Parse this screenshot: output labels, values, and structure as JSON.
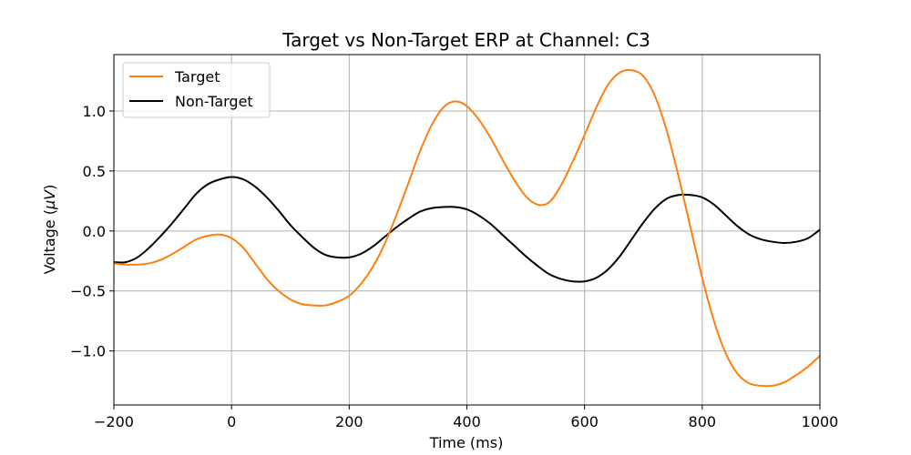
{
  "chart_data": {
    "type": "line",
    "title": "Target vs Non-Target ERP at Channel: C3",
    "xlabel": "Time (ms)",
    "ylabel_prefix": "Voltage (",
    "ylabel_unit": "μV",
    "ylabel_suffix": ")",
    "xlim": [
      -200,
      1000
    ],
    "ylim": [
      -1.45,
      1.47
    ],
    "grid": true,
    "legend_position": "top-left",
    "x_ticks": [
      -200,
      0,
      200,
      400,
      600,
      800,
      1000
    ],
    "x_tick_labels": [
      "−200",
      "0",
      "200",
      "400",
      "600",
      "800",
      "1000"
    ],
    "y_ticks": [
      -1.0,
      -0.5,
      0.0,
      0.5,
      1.0
    ],
    "y_tick_labels": [
      "−1.0",
      "−0.5",
      "0.0",
      "0.5",
      "1.0"
    ],
    "series": [
      {
        "name": "Target",
        "color": "#ff7f0e",
        "x": [
          -200,
          -180,
          -160,
          -140,
          -120,
          -100,
          -80,
          -60,
          -40,
          -20,
          0,
          20,
          40,
          60,
          80,
          100,
          120,
          140,
          160,
          180,
          200,
          220,
          240,
          260,
          280,
          300,
          320,
          340,
          360,
          380,
          400,
          420,
          440,
          460,
          480,
          500,
          520,
          540,
          560,
          580,
          600,
          620,
          640,
          660,
          680,
          700,
          720,
          740,
          760,
          780,
          800,
          820,
          840,
          860,
          880,
          900,
          920,
          940,
          960,
          980,
          1000
        ],
        "y": [
          -0.27,
          -0.28,
          -0.28,
          -0.27,
          -0.24,
          -0.19,
          -0.13,
          -0.07,
          -0.04,
          -0.03,
          -0.06,
          -0.14,
          -0.27,
          -0.4,
          -0.5,
          -0.57,
          -0.61,
          -0.62,
          -0.62,
          -0.59,
          -0.54,
          -0.44,
          -0.3,
          -0.11,
          0.13,
          0.39,
          0.66,
          0.88,
          1.03,
          1.08,
          1.04,
          0.93,
          0.78,
          0.6,
          0.43,
          0.29,
          0.22,
          0.24,
          0.38,
          0.58,
          0.8,
          1.03,
          1.22,
          1.32,
          1.34,
          1.29,
          1.12,
          0.83,
          0.45,
          0.03,
          -0.39,
          -0.75,
          -1.02,
          -1.19,
          -1.27,
          -1.29,
          -1.29,
          -1.26,
          -1.2,
          -1.13,
          -1.04
        ]
      },
      {
        "name": "Non-Target",
        "color": "#000000",
        "x": [
          -200,
          -180,
          -160,
          -140,
          -120,
          -100,
          -80,
          -60,
          -40,
          -20,
          0,
          20,
          40,
          60,
          80,
          100,
          120,
          140,
          160,
          180,
          200,
          220,
          240,
          260,
          280,
          300,
          320,
          340,
          360,
          380,
          400,
          420,
          440,
          460,
          480,
          500,
          520,
          540,
          560,
          580,
          600,
          620,
          640,
          660,
          680,
          700,
          720,
          740,
          760,
          780,
          800,
          820,
          840,
          860,
          880,
          900,
          920,
          940,
          960,
          980,
          1000
        ],
        "y": [
          -0.26,
          -0.26,
          -0.22,
          -0.14,
          -0.04,
          0.07,
          0.19,
          0.31,
          0.39,
          0.43,
          0.45,
          0.43,
          0.37,
          0.28,
          0.17,
          0.05,
          -0.05,
          -0.14,
          -0.2,
          -0.22,
          -0.22,
          -0.19,
          -0.13,
          -0.05,
          0.03,
          0.1,
          0.16,
          0.19,
          0.2,
          0.2,
          0.18,
          0.13,
          0.06,
          -0.03,
          -0.12,
          -0.21,
          -0.29,
          -0.36,
          -0.4,
          -0.42,
          -0.42,
          -0.39,
          -0.32,
          -0.21,
          -0.07,
          0.07,
          0.19,
          0.27,
          0.3,
          0.3,
          0.28,
          0.22,
          0.13,
          0.04,
          -0.03,
          -0.07,
          -0.09,
          -0.1,
          -0.09,
          -0.06,
          0.01
        ]
      }
    ]
  }
}
